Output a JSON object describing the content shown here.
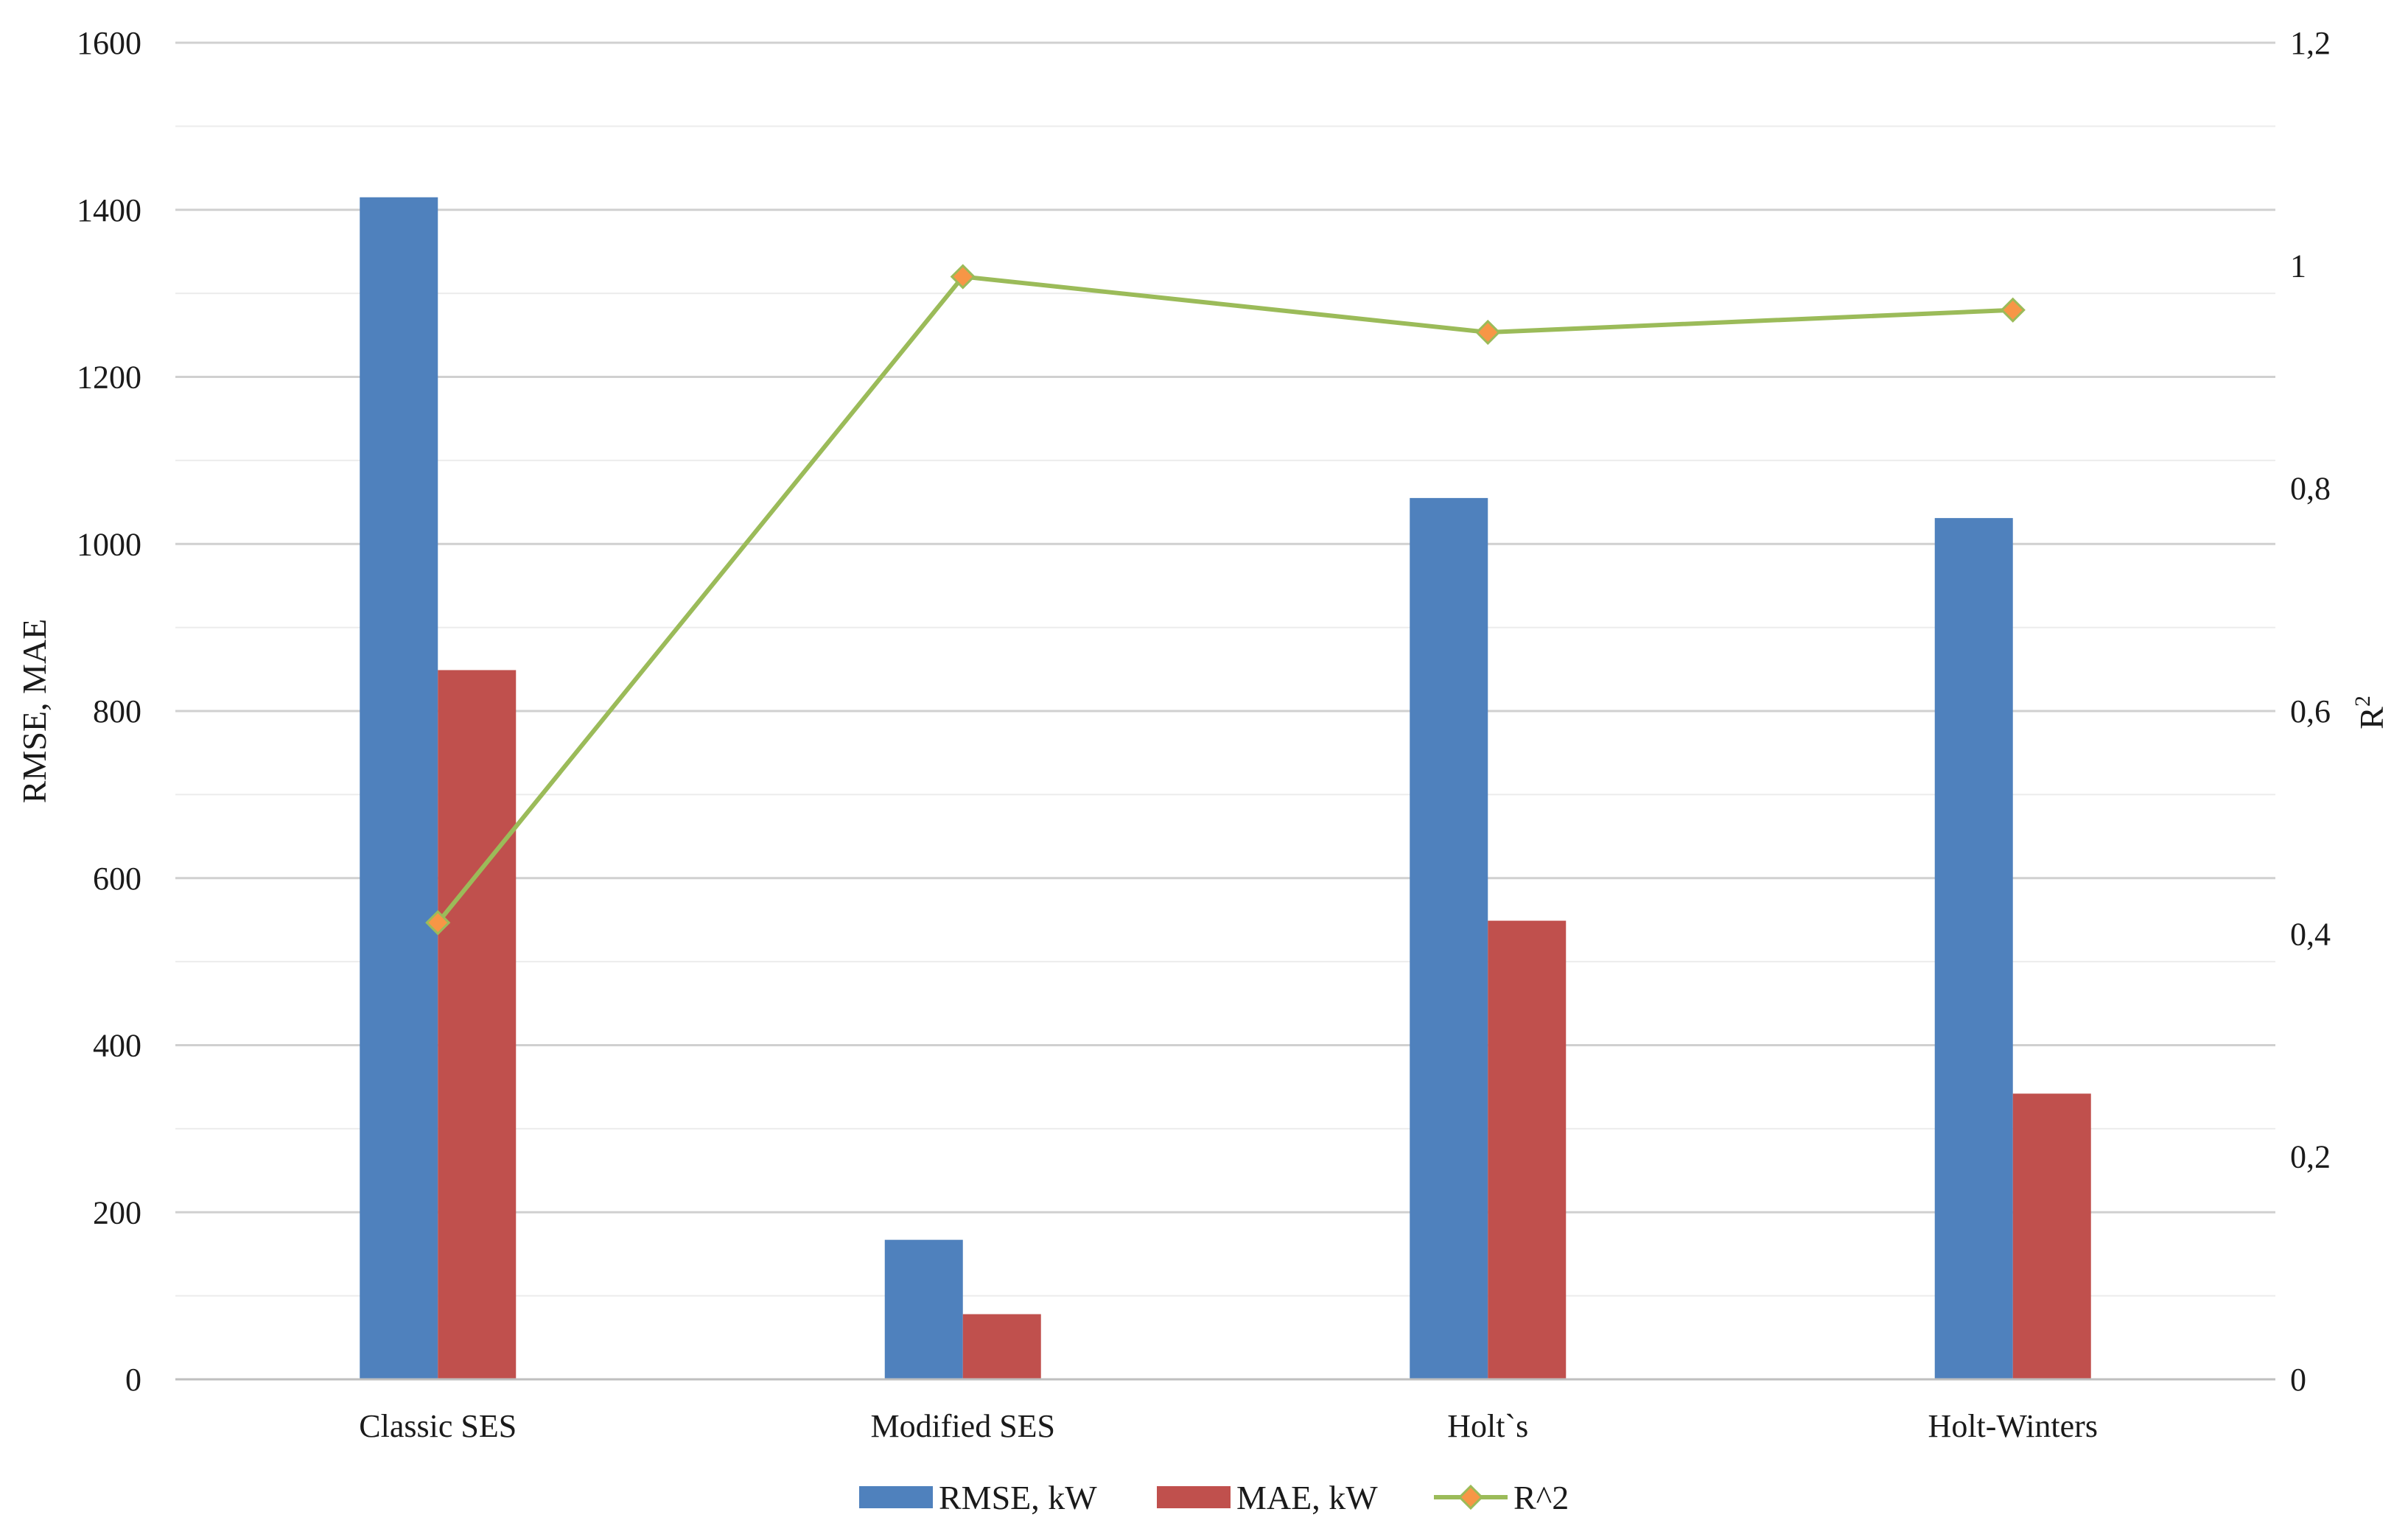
{
  "chart_data": {
    "type": "bar",
    "categories": [
      "Classic SES",
      "Modified SES",
      "Holt`s",
      "Holt-Winters"
    ],
    "series": [
      {
        "name": "RMSE, kW",
        "kind": "bar",
        "axis": "left",
        "color": "#4f81bd",
        "values": [
          1415,
          167,
          1055,
          1031
        ]
      },
      {
        "name": "MAE, kW",
        "kind": "bar",
        "axis": "left",
        "color": "#c0504d",
        "values": [
          849,
          78,
          549,
          342
        ]
      },
      {
        "name": "R^2",
        "kind": "line",
        "axis": "right",
        "color": "#9bbb59",
        "marker_color": "#f79646",
        "values": [
          0.41,
          0.99,
          0.94,
          0.96
        ]
      }
    ],
    "ylabel": "RMSE, MAE",
    "ylabel_right": "R",
    "ylabel_right_sup": "2",
    "ylim": [
      0,
      1600
    ],
    "ylim_right": [
      0,
      1.2
    ],
    "yticks": [
      "0",
      "200",
      "400",
      "600",
      "800",
      "1000",
      "1200",
      "1400",
      "1600"
    ],
    "yticks_right": [
      "0",
      "0,2",
      "0,4",
      "0,6",
      "0,8",
      "1",
      "1,2"
    ],
    "grid": true,
    "legend_position": "bottom"
  }
}
